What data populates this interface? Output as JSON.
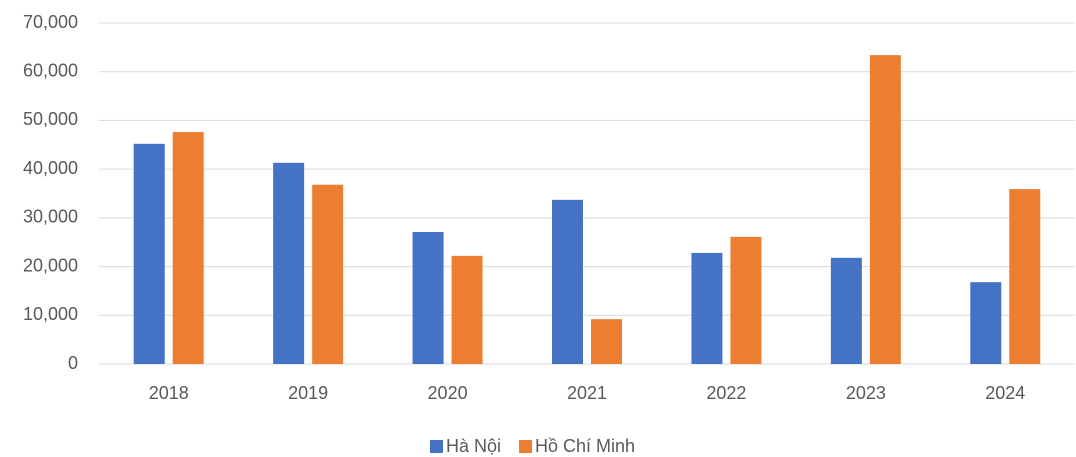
{
  "chart_data": {
    "type": "bar",
    "categories": [
      "2018",
      "2019",
      "2020",
      "2021",
      "2022",
      "2023",
      "2024"
    ],
    "series": [
      {
        "name": "Hà Nội",
        "color": "#4472c4",
        "values": [
          45200,
          41300,
          27100,
          33700,
          22800,
          21800,
          16800
        ]
      },
      {
        "name": "Hồ Chí Minh",
        "color": "#ed7d31",
        "values": [
          47600,
          36800,
          22200,
          9200,
          26100,
          63400,
          35900
        ]
      }
    ],
    "ylim": [
      0,
      70000
    ],
    "yticks": [
      0,
      {
        "value": 10000,
        "label": "10,000"
      },
      {
        "value": 20000,
        "label": "20,000"
      },
      {
        "value": 30000,
        "label": "30,000"
      },
      {
        "value": 40000,
        "label": "40,000"
      },
      {
        "value": 50000,
        "label": "50,000"
      },
      {
        "value": 60000,
        "label": "60,000"
      },
      {
        "value": 70000,
        "label": "70,000"
      }
    ],
    "grid": true,
    "legend": "bottom"
  }
}
